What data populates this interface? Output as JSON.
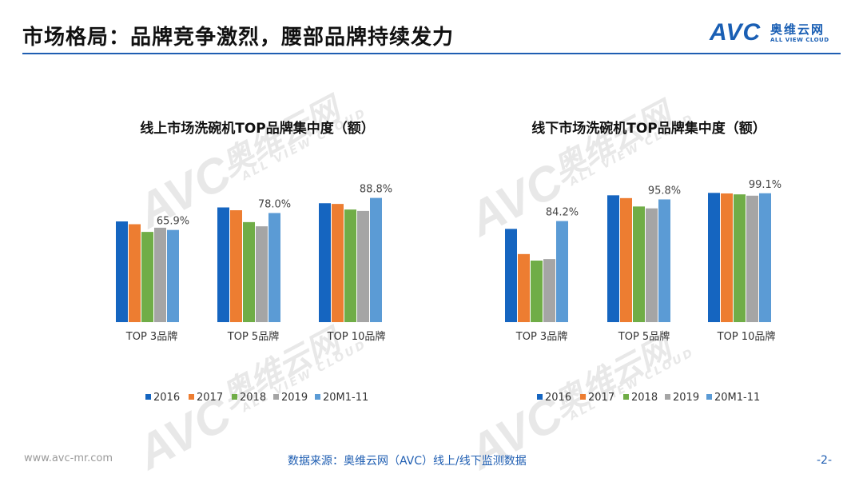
{
  "header": {
    "title": "市场格局：品牌竞争激烈，腰部品牌持续发力",
    "logo_mark": "AVC",
    "logo_cn": "奥维云网",
    "logo_en": "ALL VIEW CLOUD"
  },
  "watermark": {
    "mark": "AVC",
    "cn": "奥维云网",
    "en": "ALL VIEW CLOUD"
  },
  "colors": {
    "accent": "#1f5eb2",
    "series": [
      "#1565c0",
      "#ed7d31",
      "#70ad47",
      "#a5a5a5",
      "#5b9bd5"
    ]
  },
  "chart_data": [
    {
      "type": "bar",
      "title": "线上市场洗碗机TOP品牌集中度（额）",
      "categories": [
        "TOP 3品牌",
        "TOP 5品牌",
        "TOP 10品牌"
      ],
      "series": [
        {
          "name": "2016",
          "values": [
            72.0,
            82.0,
            85.0
          ]
        },
        {
          "name": "2017",
          "values": [
            70.0,
            80.0,
            84.5
          ]
        },
        {
          "name": "2018",
          "values": [
            64.5,
            71.5,
            80.5
          ]
        },
        {
          "name": "2019",
          "values": [
            67.5,
            68.5,
            79.5
          ]
        },
        {
          "name": "20M1-11",
          "values": [
            65.9,
            78.0,
            88.8
          ]
        }
      ],
      "data_labels": [
        "65.9%",
        "78.0%",
        "88.8%"
      ],
      "ylim": [
        0,
        100
      ],
      "grid": false,
      "legend": "bottom"
    },
    {
      "type": "bar",
      "title": "线下市场洗碗机TOP品牌集中度（额）",
      "categories": [
        "TOP 3品牌",
        "TOP 5品牌",
        "TOP 10品牌"
      ],
      "series": [
        {
          "name": "2016",
          "values": [
            80.0,
            98.0,
            99.3
          ]
        },
        {
          "name": "2017",
          "values": [
            66.5,
            96.5,
            99.0
          ]
        },
        {
          "name": "2018",
          "values": [
            63.0,
            92.0,
            98.5
          ]
        },
        {
          "name": "2019",
          "values": [
            63.8,
            91.0,
            97.8
          ]
        },
        {
          "name": "20M1-11",
          "values": [
            84.2,
            95.8,
            99.1
          ]
        }
      ],
      "data_labels": [
        "84.2%",
        "95.8%",
        "99.1%"
      ],
      "ylim": [
        30,
        105
      ],
      "grid": false,
      "legend": "bottom"
    }
  ],
  "footer": {
    "url": "www.avc-mr.com",
    "source": "数据来源：奥维云网（AVC）线上/线下监测数据",
    "page": "-2-"
  }
}
